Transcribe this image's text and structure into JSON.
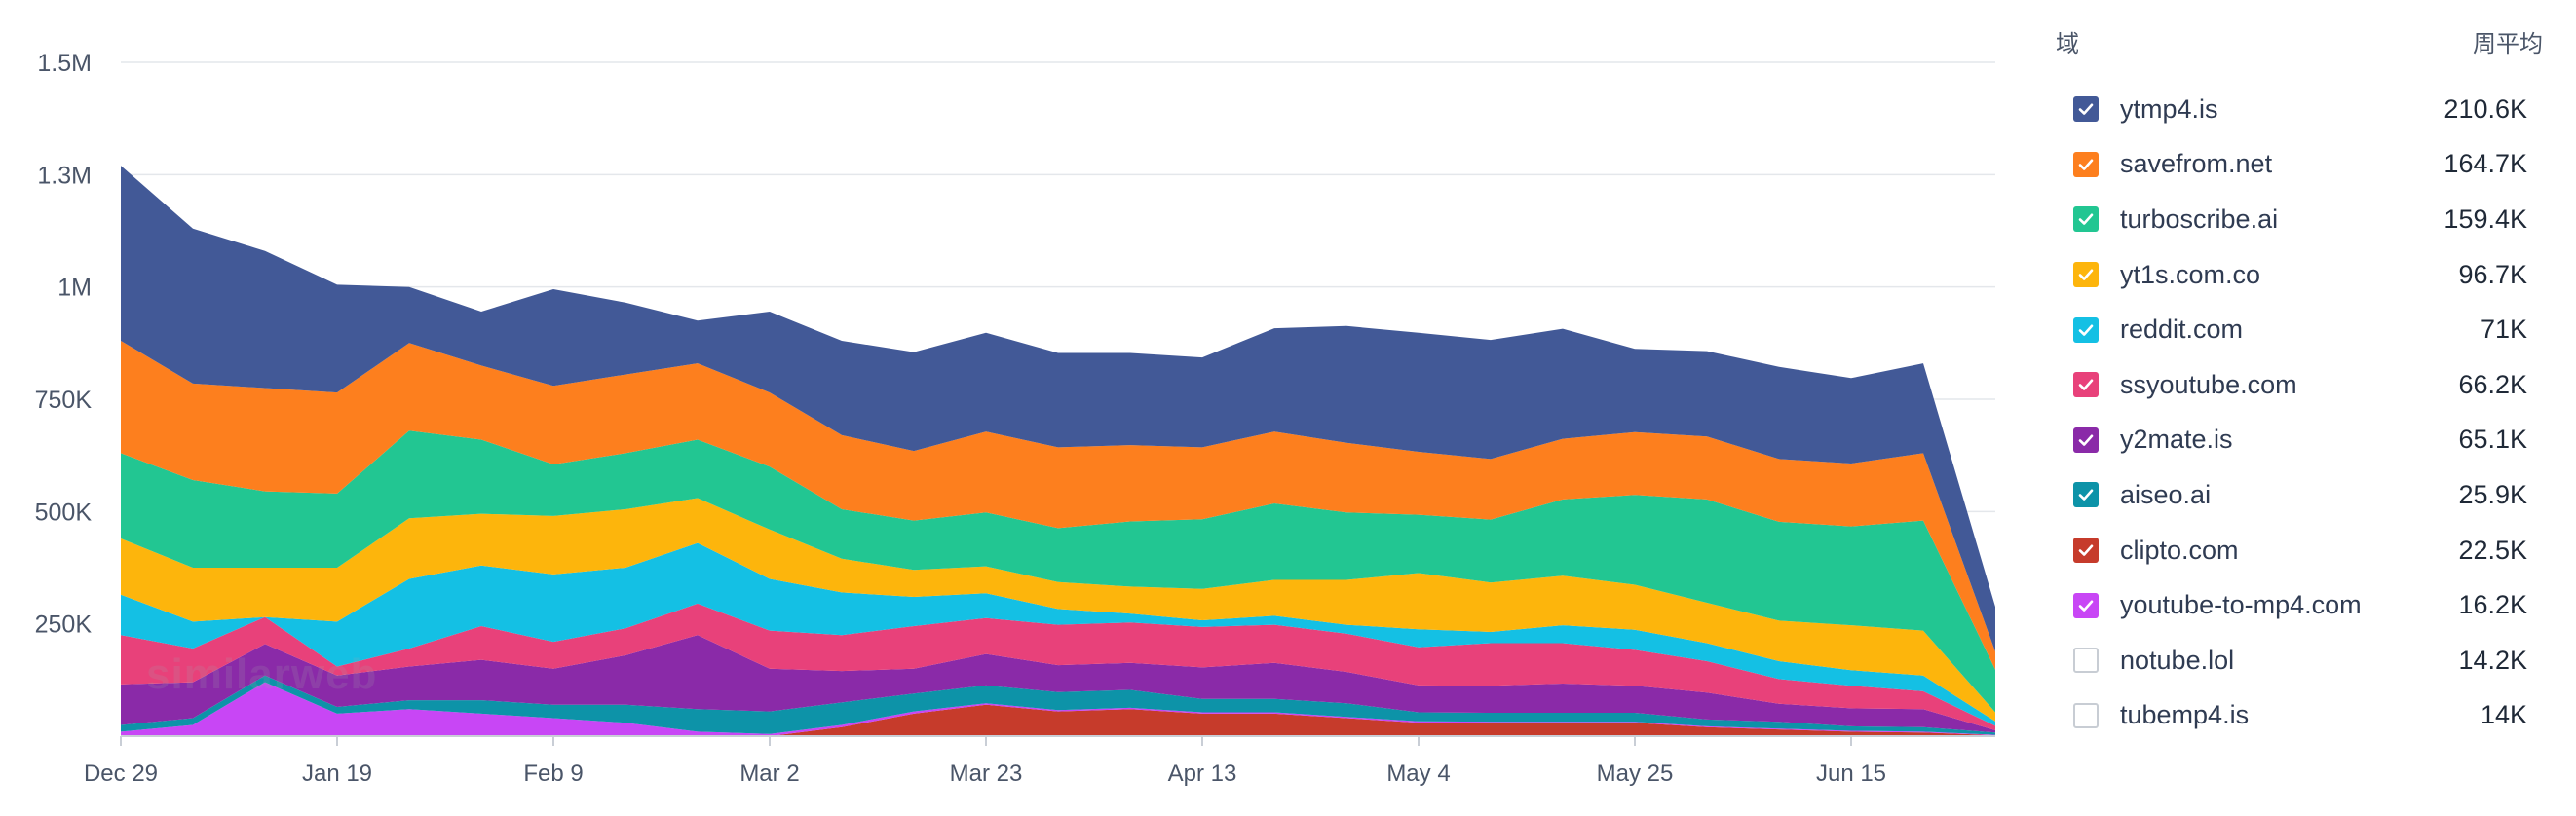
{
  "chart_data": {
    "type": "area",
    "stacked": true,
    "title": "",
    "xlabel": "",
    "ylabel": "",
    "ylim": [
      0,
      1500000
    ],
    "y_ticks": [
      {
        "value": 250000,
        "label": "250K"
      },
      {
        "value": 500000,
        "label": "500K"
      },
      {
        "value": 750000,
        "label": "750K"
      },
      {
        "value": 1000000,
        "label": "1M"
      },
      {
        "value": 1250000,
        "label": "1.3M"
      },
      {
        "value": 1500000,
        "label": "1.5M"
      }
    ],
    "grid": true,
    "legend_position": "right",
    "x_ticks": [
      {
        "index": 0,
        "label": "Dec 29"
      },
      {
        "index": 3,
        "label": "Jan 19"
      },
      {
        "index": 6,
        "label": "Feb 9"
      },
      {
        "index": 9,
        "label": "Mar 2"
      },
      {
        "index": 12,
        "label": "Mar 23"
      },
      {
        "index": 15,
        "label": "Apr 13"
      },
      {
        "index": 18,
        "label": "May 4"
      },
      {
        "index": 21,
        "label": "May 25"
      },
      {
        "index": 24,
        "label": "Jun 15"
      }
    ],
    "x": [
      "Dec 29",
      "Jan 5",
      "Jan 12",
      "Jan 19",
      "Jan 26",
      "Feb 2",
      "Feb 9",
      "Feb 16",
      "Feb 23",
      "Mar 2",
      "Mar 9",
      "Mar 16",
      "Mar 23",
      "Mar 30",
      "Apr 6",
      "Apr 13",
      "Apr 20",
      "Apr 27",
      "May 4",
      "May 11",
      "May 18",
      "May 25",
      "Jun 1",
      "Jun 8",
      "Jun 15",
      "Jun 22",
      "Jun 29"
    ],
    "series": [
      {
        "name": "clipto.com",
        "color": "#c63b2b",
        "values": [
          0,
          0,
          0,
          0,
          0,
          0,
          0,
          0,
          0,
          0,
          20000,
          50000,
          70000,
          55000,
          60000,
          50000,
          50000,
          40000,
          30000,
          30000,
          30000,
          30000,
          20000,
          15000,
          10000,
          8000,
          2000
        ]
      },
      {
        "name": "youtube-to-mp4.com",
        "color": "#c846f5",
        "values": [
          10000,
          25000,
          120000,
          50000,
          60000,
          50000,
          40000,
          30000,
          10000,
          5000,
          5000,
          5000,
          3000,
          3000,
          3000,
          3000,
          3000,
          3000,
          3000,
          2000,
          2000,
          2000,
          2000,
          2000,
          2000,
          2000,
          1000
        ]
      },
      {
        "name": "aiseo.ai",
        "color": "#0d93a8",
        "values": [
          15000,
          15000,
          15000,
          15000,
          20000,
          30000,
          30000,
          40000,
          50000,
          50000,
          50000,
          40000,
          40000,
          40000,
          40000,
          30000,
          30000,
          30000,
          20000,
          20000,
          20000,
          20000,
          15000,
          15000,
          10000,
          10000,
          5000
        ]
      },
      {
        "name": "y2mate.is",
        "color": "#8a2aa8",
        "values": [
          90000,
          80000,
          70000,
          70000,
          75000,
          90000,
          80000,
          110000,
          165000,
          95000,
          70000,
          55000,
          70000,
          60000,
          60000,
          70000,
          80000,
          70000,
          60000,
          60000,
          65000,
          60000,
          60000,
          40000,
          40000,
          40000,
          5000
        ]
      },
      {
        "name": "ssyoutube.com",
        "color": "#e8417a",
        "values": [
          110000,
          75000,
          60000,
          20000,
          40000,
          75000,
          60000,
          60000,
          70000,
          85000,
          80000,
          95000,
          80000,
          90000,
          90000,
          90000,
          85000,
          85000,
          85000,
          95000,
          90000,
          80000,
          70000,
          55000,
          50000,
          40000,
          10000
        ]
      },
      {
        "name": "reddit.com",
        "color": "#14c0e4",
        "values": [
          90000,
          60000,
          0,
          100000,
          155000,
          135000,
          150000,
          135000,
          135000,
          115000,
          95000,
          65000,
          55000,
          35000,
          20000,
          15000,
          20000,
          20000,
          40000,
          25000,
          40000,
          45000,
          40000,
          40000,
          35000,
          35000,
          10000
        ]
      },
      {
        "name": "yt1s.com.co",
        "color": "#fdb50c",
        "values": [
          125000,
          120000,
          110000,
          120000,
          135000,
          115000,
          130000,
          130000,
          100000,
          110000,
          75000,
          60000,
          60000,
          60000,
          60000,
          70000,
          80000,
          100000,
          125000,
          110000,
          110000,
          100000,
          90000,
          90000,
          100000,
          100000,
          20000
        ]
      },
      {
        "name": "turboscribe.ai",
        "color": "#22c692",
        "values": [
          190000,
          195000,
          170000,
          165000,
          195000,
          165000,
          115000,
          125000,
          130000,
          140000,
          110000,
          110000,
          120000,
          120000,
          145000,
          155000,
          170000,
          150000,
          130000,
          140000,
          170000,
          200000,
          230000,
          220000,
          220000,
          245000,
          95000
        ]
      },
      {
        "name": "savefrom.net",
        "color": "#fd7f1e",
        "values": [
          250000,
          215000,
          230000,
          225000,
          195000,
          165000,
          175000,
          175000,
          170000,
          165000,
          165000,
          155000,
          180000,
          180000,
          170000,
          160000,
          160000,
          155000,
          140000,
          135000,
          135000,
          140000,
          140000,
          140000,
          140000,
          150000,
          40000
        ]
      },
      {
        "name": "ytmp4.is",
        "color": "#425997",
        "values": [
          390000,
          345000,
          305000,
          240000,
          125000,
          120000,
          215000,
          160000,
          95000,
          180000,
          210000,
          220000,
          220000,
          210000,
          205000,
          200000,
          230000,
          260000,
          265000,
          265000,
          245000,
          185000,
          190000,
          205000,
          190000,
          200000,
          100000
        ]
      }
    ]
  },
  "legend": {
    "header_domain": "域",
    "header_weekly_avg": "周平均",
    "check_color_off": "#c8cdd4",
    "items": [
      {
        "name": "ytmp4.is",
        "value": "210.6K",
        "color": "#425997",
        "checked": true
      },
      {
        "name": "savefrom.net",
        "value": "164.7K",
        "color": "#fd7f1e",
        "checked": true
      },
      {
        "name": "turboscribe.ai",
        "value": "159.4K",
        "color": "#22c692",
        "checked": true
      },
      {
        "name": "yt1s.com.co",
        "value": "96.7K",
        "color": "#fdb50c",
        "checked": true
      },
      {
        "name": "reddit.com",
        "value": "71K",
        "color": "#14c0e4",
        "checked": true
      },
      {
        "name": "ssyoutube.com",
        "value": "66.2K",
        "color": "#e8417a",
        "checked": true
      },
      {
        "name": "y2mate.is",
        "value": "65.1K",
        "color": "#8a2aa8",
        "checked": true
      },
      {
        "name": "aiseo.ai",
        "value": "25.9K",
        "color": "#0d93a8",
        "checked": true
      },
      {
        "name": "clipto.com",
        "value": "22.5K",
        "color": "#c63b2b",
        "checked": true
      },
      {
        "name": "youtube-to-mp4.com",
        "value": "16.2K",
        "color": "#c846f5",
        "checked": true
      },
      {
        "name": "notube.lol",
        "value": "14.2K",
        "color": "#c8cdd4",
        "checked": false
      },
      {
        "name": "tubemp4.is",
        "value": "14K",
        "color": "#c8cdd4",
        "checked": false
      }
    ]
  },
  "watermark": "similarweb"
}
